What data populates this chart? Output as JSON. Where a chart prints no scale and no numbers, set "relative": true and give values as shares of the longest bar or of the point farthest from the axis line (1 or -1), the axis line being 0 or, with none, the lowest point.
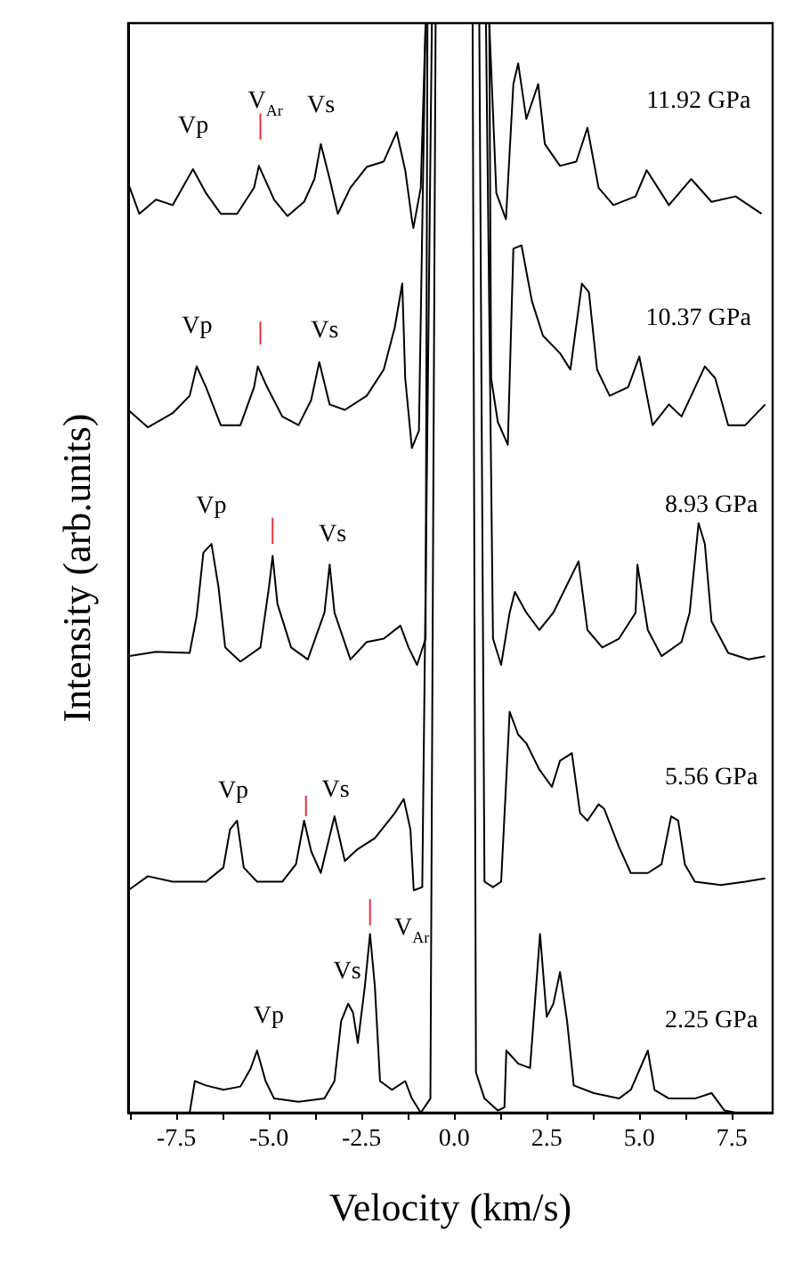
{
  "chart_data": {
    "type": "line",
    "relative": true,
    "xlabel": "Velocity (km/s)",
    "ylabel": "Intensity (arb.units)",
    "xlim": [
      -8.8,
      8.6
    ],
    "xticks": [
      {
        "value": -8.75,
        "label": null
      },
      -7.5,
      {
        "value": -6.25,
        "label": null
      },
      {
        "value": -5,
        "label": "-5.0"
      },
      {
        "value": -3.75,
        "label": null
      },
      -2.5,
      {
        "value": -1.25,
        "label": null
      },
      {
        "value": 0,
        "label": "0.0"
      },
      {
        "value": 1.25,
        "label": null
      },
      2.5,
      {
        "value": 3.75,
        "label": null
      },
      {
        "value": 5,
        "label": "5.0"
      },
      {
        "value": 6.25,
        "label": null
      },
      7.5
    ],
    "grid": false,
    "series": [
      {
        "color": "#000000",
        "x": [
          -8.8,
          -8.5,
          -8.05,
          -7.6,
          -7.05,
          -6.7,
          -6.3,
          -5.86,
          -5.4,
          -5.27,
          -4.86,
          -4.5,
          -4.05,
          -3.77,
          -3.6,
          -3.36,
          -3.14,
          -2.8,
          -2.36,
          -1.9,
          -1.55,
          -1.32,
          -1.14,
          -1.1,
          -0.9,
          -0.77,
          0,
          0.95,
          1.14,
          1.4,
          1.6,
          1.73,
          1.95,
          2.27,
          2.45,
          2.86,
          3.3,
          3.6,
          3.9,
          4.3,
          4.9,
          5.2,
          5.8,
          6.4,
          6.95,
          7.6,
          8.3
        ],
        "values": [
          0.853,
          0.825,
          0.838,
          0.833,
          0.866,
          0.844,
          0.825,
          0.825,
          0.849,
          0.869,
          0.838,
          0.823,
          0.836,
          0.857,
          0.889,
          0.857,
          0.825,
          0.849,
          0.868,
          0.873,
          0.9,
          0.865,
          0.82,
          0.812,
          0.849,
          1,
          null,
          1,
          0.844,
          0.82,
          0.944,
          0.963,
          0.912,
          0.944,
          0.889,
          0.869,
          0.873,
          0.904,
          0.849,
          0.833,
          0.841,
          0.865,
          0.833,
          0.857,
          0.836,
          0.841,
          0.825
        ]
      },
      {
        "color": "#000000",
        "x": [
          -8.8,
          -8.27,
          -7.6,
          -7.14,
          -6.95,
          -6.7,
          -6.3,
          -5.77,
          -5.4,
          -5.3,
          -5.05,
          -4.64,
          -4.2,
          -3.86,
          -3.64,
          -3.36,
          -2.95,
          -2.36,
          -1.9,
          -1.6,
          -1.4,
          -1.32,
          -1.14,
          -0.95,
          -0.77,
          0,
          0.95,
          1.0,
          1.18,
          1.45,
          1.6,
          1.82,
          2.1,
          2.4,
          2.86,
          3.14,
          3.45,
          3.64,
          3.86,
          4.2,
          4.7,
          5.0,
          5.36,
          5.8,
          6.14,
          6.77,
          7.05,
          7.4,
          7.86,
          8.4
        ],
        "values": [
          0.645,
          0.629,
          0.642,
          0.658,
          0.685,
          0.666,
          0.631,
          0.631,
          0.666,
          0.685,
          0.666,
          0.639,
          0.631,
          0.654,
          0.689,
          0.65,
          0.645,
          0.658,
          0.682,
          0.721,
          0.761,
          0.674,
          0.61,
          0.626,
          1,
          null,
          1,
          0.674,
          0.634,
          0.613,
          0.793,
          0.796,
          0.745,
          0.713,
          0.697,
          0.682,
          0.761,
          0.753,
          0.682,
          0.658,
          0.666,
          0.694,
          0.631,
          0.65,
          0.639,
          0.685,
          0.674,
          0.631,
          0.631,
          0.65
        ]
      },
      {
        "color": "#000000",
        "x": [
          -8.8,
          -8.05,
          -7.14,
          -6.95,
          -6.77,
          -6.55,
          -6.36,
          -6.18,
          -5.77,
          -5.23,
          -5.0,
          -4.9,
          -4.77,
          -4.4,
          -3.95,
          -3.5,
          -3.36,
          -3.23,
          -2.8,
          -2.36,
          -1.9,
          -1.45,
          -1.23,
          -1.0,
          -0.77,
          -0.72,
          0,
          0.86,
          1.05,
          1.27,
          1.5,
          1.64,
          1.95,
          2.3,
          2.68,
          3.36,
          3.6,
          4.0,
          4.45,
          4.9,
          4.95,
          5.23,
          5.6,
          6.14,
          6.36,
          6.6,
          6.77,
          6.95,
          7.4,
          7.95,
          8.4
        ],
        "values": [
          0.419,
          0.423,
          0.422,
          0.456,
          0.514,
          0.522,
          0.482,
          0.427,
          0.414,
          0.427,
          0.482,
          0.511,
          0.467,
          0.427,
          0.416,
          0.459,
          0.503,
          0.459,
          0.416,
          0.432,
          0.435,
          0.447,
          0.427,
          0.411,
          0.435,
          1,
          null,
          1,
          0.435,
          0.411,
          0.459,
          0.478,
          0.459,
          0.443,
          0.459,
          0.506,
          0.443,
          0.427,
          0.435,
          0.459,
          0.503,
          0.443,
          0.419,
          0.432,
          0.459,
          0.541,
          0.522,
          0.451,
          0.422,
          0.416,
          0.419
        ]
      },
      {
        "color": "#000000",
        "x": [
          -8.8,
          -8.27,
          -7.6,
          -6.7,
          -6.23,
          -6.05,
          -5.86,
          -5.68,
          -5.32,
          -4.64,
          -4.27,
          -4.05,
          -3.86,
          -3.6,
          -3.23,
          -2.95,
          -2.6,
          -2.14,
          -1.6,
          -1.36,
          -1.18,
          -1.09,
          -0.86,
          -0.6,
          0,
          0.68,
          0.82,
          1.05,
          1.27,
          1.5,
          1.73,
          1.95,
          2.3,
          2.64,
          2.86,
          3.18,
          3.4,
          3.6,
          3.9,
          4.05,
          4.45,
          4.77,
          5.23,
          5.6,
          5.86,
          6.05,
          6.23,
          6.5,
          7.2,
          7.86,
          8.4
        ],
        "values": [
          0.204,
          0.217,
          0.212,
          0.212,
          0.225,
          0.26,
          0.268,
          0.225,
          0.212,
          0.212,
          0.228,
          0.268,
          0.24,
          0.22,
          0.272,
          0.231,
          0.242,
          0.252,
          0.275,
          0.288,
          0.26,
          0.204,
          0.207,
          1,
          null,
          1,
          0.212,
          0.207,
          0.212,
          0.368,
          0.347,
          0.339,
          0.315,
          0.299,
          0.323,
          0.33,
          0.275,
          0.268,
          0.283,
          0.279,
          0.244,
          0.22,
          0.22,
          0.228,
          0.272,
          0.268,
          0.228,
          0.212,
          0.209,
          0.212,
          0.215
        ]
      },
      {
        "color": "#000000",
        "x": [
          -7.14,
          -7.0,
          -6.7,
          -6.23,
          -5.77,
          -5.5,
          -5.32,
          -5.09,
          -4.86,
          -4.2,
          -3.5,
          -3.23,
          -3.05,
          -2.86,
          -2.73,
          -2.6,
          -2.41,
          -2.27,
          -2.14,
          -2.0,
          -1.68,
          -1.32,
          -1.14,
          -0.9,
          -0.64,
          -0.5,
          0,
          0.5,
          0.59,
          0.82,
          1.18,
          1.36,
          1.41,
          1.73,
          2.05,
          2.32,
          2.5,
          2.68,
          2.86,
          3.05,
          3.23,
          3.77,
          4.45,
          4.77,
          5.23,
          5.41,
          5.8,
          6.5,
          6.95,
          7.3,
          7.6
        ],
        "values": [
          0,
          0.029,
          0.025,
          0.021,
          0.024,
          0.04,
          0.057,
          0.029,
          0.013,
          0.01,
          0.013,
          0.029,
          0.084,
          0.1,
          0.092,
          0.064,
          0.116,
          0.164,
          0.116,
          0.029,
          0.021,
          0.029,
          0.013,
          0,
          0.013,
          1,
          null,
          1,
          0.037,
          0.013,
          0.002,
          0.005,
          0.057,
          0.045,
          0.041,
          0.164,
          0.088,
          0.1,
          0.129,
          0.084,
          0.025,
          0.018,
          0.013,
          0.021,
          0.057,
          0.021,
          0.013,
          0.013,
          0.018,
          0.002,
          0
        ]
      },
      {
        "color": "#e8303a",
        "x": [
          -5.23,
          -5.23
        ],
        "values": [
          0.893,
          0.917
        ]
      },
      {
        "color": "#e8303a",
        "x": [
          -5.23,
          -5.23
        ],
        "values": [
          0.705,
          0.726
        ]
      },
      {
        "color": "#e8303a",
        "x": [
          -4.9,
          -4.9
        ],
        "values": [
          0.522,
          0.546
        ]
      },
      {
        "color": "#e8303a",
        "x": [
          -4.0,
          -4.0
        ],
        "values": [
          0.272,
          0.291
        ]
      },
      {
        "color": "#e8303a",
        "x": [
          -2.27,
          -2.27
        ],
        "values": [
          0.172,
          0.196
        ]
      }
    ],
    "annotations": [
      "Vp",
      "V$_{Ar}$",
      "Vs",
      "11.92 GPa",
      "Vp",
      "Vs",
      "10.37 GPa",
      "Vp",
      "Vs",
      "8.93 GPa",
      "Vp",
      "Vs",
      "5.56 GPa",
      "Vp",
      "Vs",
      "V$_{Ar}$",
      "2.25 GPa"
    ]
  }
}
